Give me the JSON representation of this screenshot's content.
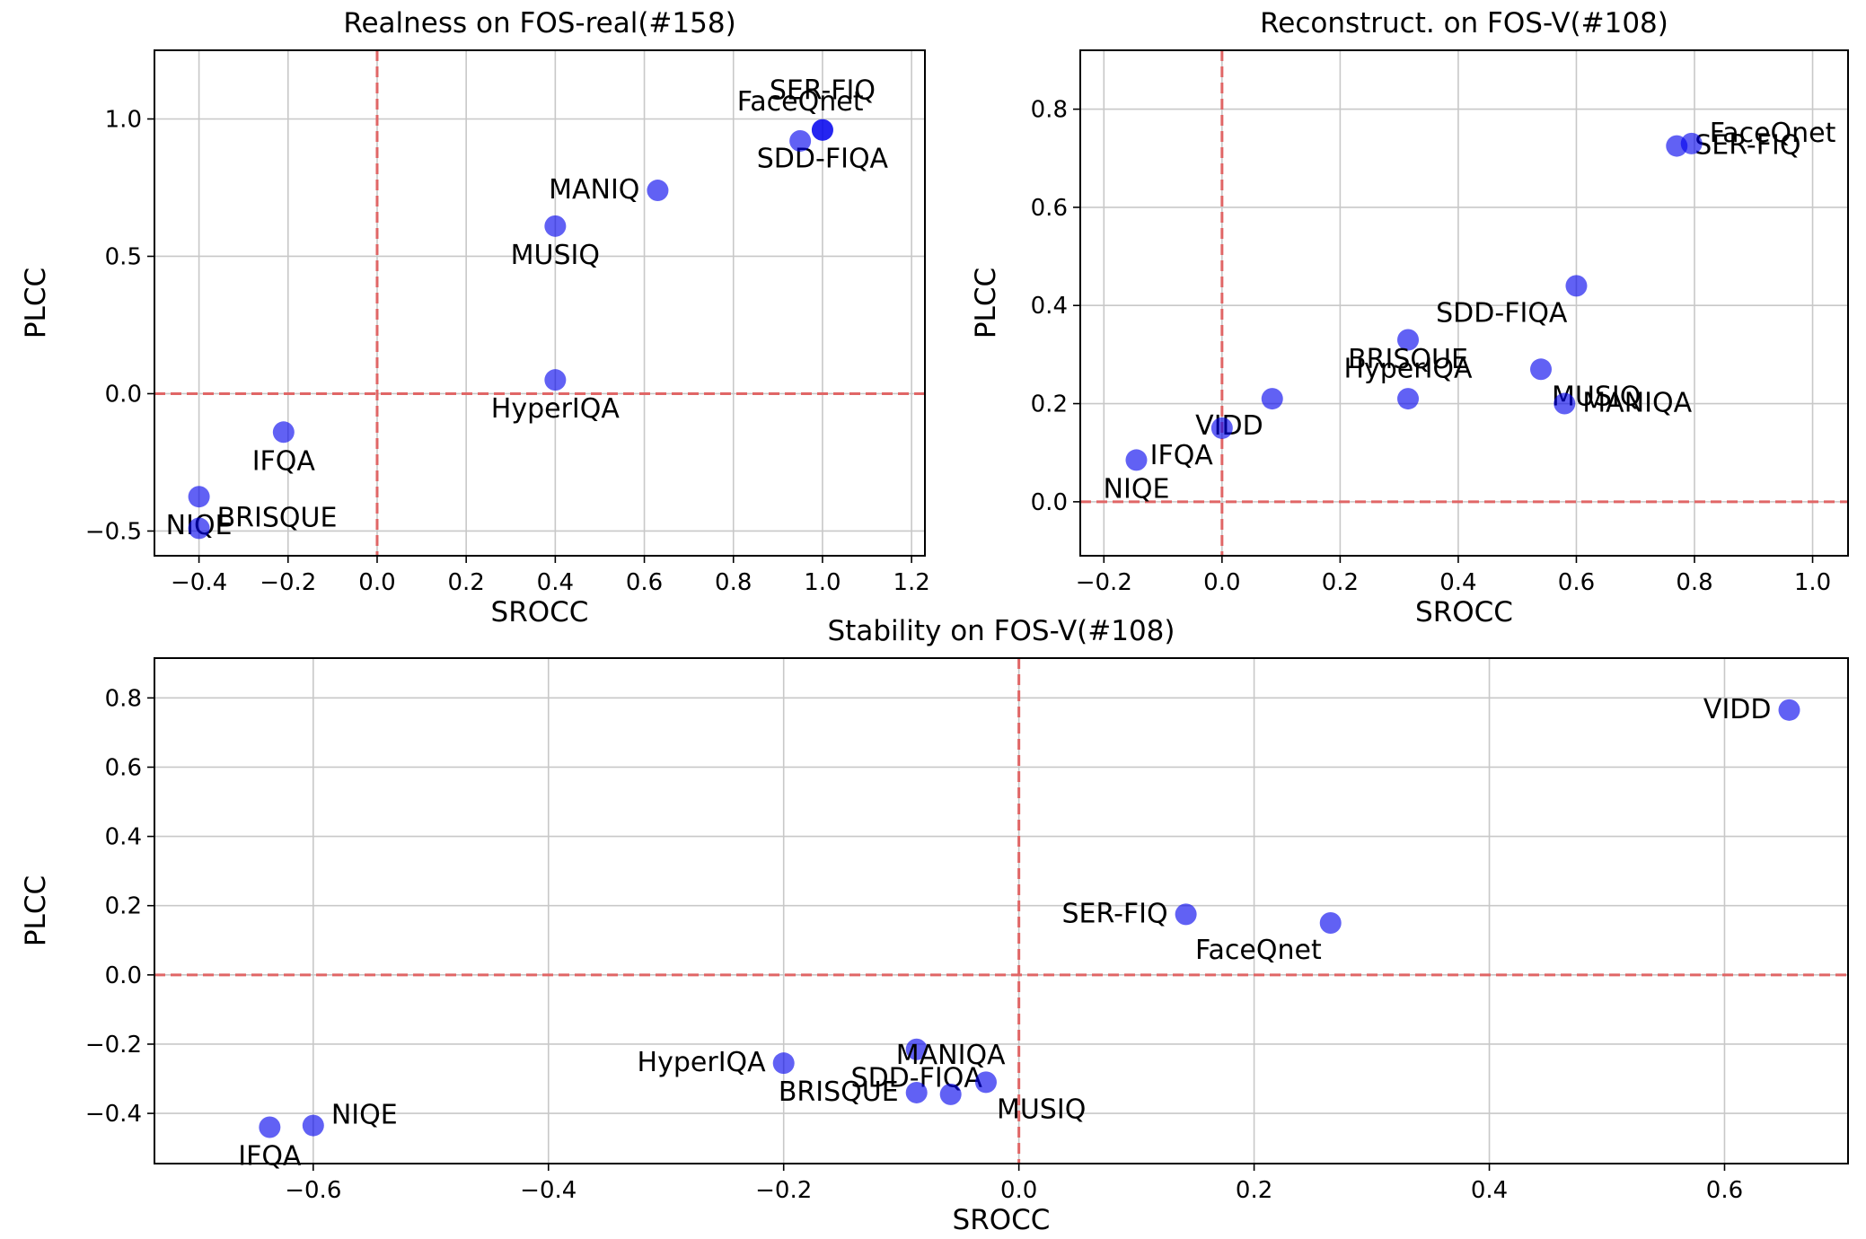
{
  "chart_data": [
    {
      "type": "scatter",
      "title": "Realness on FOS-real(#158)",
      "xlabel": "SROCC",
      "ylabel": "PLCC",
      "xlim": [
        -0.5,
        1.23
      ],
      "ylim": [
        -0.59,
        1.25
      ],
      "xticks": [
        -0.4,
        -0.2,
        0.0,
        0.2,
        0.4,
        0.6,
        0.8,
        1.0,
        1.2
      ],
      "xtick_labels": [
        "−0.4",
        "−0.2",
        "0.0",
        "0.2",
        "0.4",
        "0.6",
        "0.8",
        "1.0",
        "1.2"
      ],
      "yticks": [
        -0.5,
        0.0,
        0.5,
        1.0
      ],
      "ytick_labels": [
        "−0.5",
        "0.0",
        "0.5",
        "1.0"
      ],
      "grid": true,
      "reference_lines": {
        "x": 0,
        "y": 0
      },
      "points": [
        {
          "label": "SER-FIQ",
          "x": 1.0,
          "y": 0.96,
          "anchor": "bottom-center"
        },
        {
          "label": "SDD-FIQA",
          "x": 1.0,
          "y": 0.96,
          "anchor": "top-center"
        },
        {
          "label": "FaceQnet",
          "x": 0.95,
          "y": 0.92,
          "anchor": "bottom-center"
        },
        {
          "label": "MANIQ",
          "x": 0.63,
          "y": 0.74,
          "anchor": "left"
        },
        {
          "label": "MUSIQ",
          "x": 0.4,
          "y": 0.61,
          "anchor": "top-center"
        },
        {
          "label": "HyperIQA",
          "x": 0.4,
          "y": 0.05,
          "anchor": "top-center"
        },
        {
          "label": "IFQA",
          "x": -0.21,
          "y": -0.14,
          "anchor": "top-center"
        },
        {
          "label": "NIQE",
          "x": -0.4,
          "y": -0.375,
          "anchor": "top-center"
        },
        {
          "label": "BRISQUE",
          "x": -0.4,
          "y": -0.49,
          "anchor": "bottom-right"
        }
      ]
    },
    {
      "type": "scatter",
      "title": "Reconstruct. on FOS-V(#108)",
      "xlabel": "SROCC",
      "ylabel": "PLCC",
      "xlim": [
        -0.24,
        1.06
      ],
      "ylim": [
        -0.11,
        0.92
      ],
      "xticks": [
        -0.2,
        0.0,
        0.2,
        0.4,
        0.6,
        0.8,
        1.0
      ],
      "xtick_labels": [
        "−0.2",
        "0.0",
        "0.2",
        "0.4",
        "0.6",
        "0.8",
        "1.0"
      ],
      "yticks": [
        0.0,
        0.2,
        0.4,
        0.6,
        0.8
      ],
      "ytick_labels": [
        "0.0",
        "0.2",
        "0.4",
        "0.6",
        "0.8"
      ],
      "grid": true,
      "reference_lines": {
        "x": 0,
        "y": 0
      },
      "points": [
        {
          "label": "SER-FIQ",
          "x": 0.77,
          "y": 0.725,
          "anchor": "right"
        },
        {
          "label": "FaceQnet",
          "x": 0.795,
          "y": 0.73,
          "anchor": "bottom-right"
        },
        {
          "label": "SDD-FIQA",
          "x": 0.6,
          "y": 0.44,
          "anchor": "top-left"
        },
        {
          "label": "HyperIQA",
          "x": 0.315,
          "y": 0.33,
          "anchor": "top-center"
        },
        {
          "label": "MUSIQ",
          "x": 0.54,
          "y": 0.27,
          "anchor": "top-right"
        },
        {
          "label": "VIDD",
          "x": 0.085,
          "y": 0.21,
          "anchor": "top-left"
        },
        {
          "label": "BRISQUE",
          "x": 0.315,
          "y": 0.21,
          "anchor": "bottom-center"
        },
        {
          "label": "MANIQA",
          "x": 0.58,
          "y": 0.2,
          "anchor": "right"
        },
        {
          "label": "IFQA",
          "x": 0.0,
          "y": 0.15,
          "anchor": "top-left"
        },
        {
          "label": "NIQE",
          "x": -0.145,
          "y": 0.085,
          "anchor": "top-center"
        }
      ]
    },
    {
      "type": "scatter",
      "title": "Stability on FOS-V(#108)",
      "xlabel": "SROCC",
      "ylabel": "PLCC",
      "xlim": [
        -0.735,
        0.705
      ],
      "ylim": [
        -0.545,
        0.915
      ],
      "xticks": [
        -0.6,
        -0.4,
        -0.2,
        0.0,
        0.2,
        0.4,
        0.6
      ],
      "xtick_labels": [
        "−0.6",
        "−0.4",
        "−0.2",
        "0.0",
        "0.2",
        "0.4",
        "0.6"
      ],
      "yticks": [
        -0.4,
        -0.2,
        0.0,
        0.2,
        0.4,
        0.6,
        0.8
      ],
      "ytick_labels": [
        "−0.4",
        "−0.2",
        "0.0",
        "0.2",
        "0.4",
        "0.6",
        "0.8"
      ],
      "grid": true,
      "reference_lines": {
        "x": 0,
        "y": 0
      },
      "points": [
        {
          "label": "VIDD",
          "x": 0.655,
          "y": 0.765,
          "anchor": "left"
        },
        {
          "label": "SER-FIQ",
          "x": 0.142,
          "y": 0.175,
          "anchor": "left"
        },
        {
          "label": "FaceQnet",
          "x": 0.265,
          "y": 0.15,
          "anchor": "top-left"
        },
        {
          "label": "SDD-FIQA",
          "x": -0.087,
          "y": -0.215,
          "anchor": "top-center"
        },
        {
          "label": "HyperIQA",
          "x": -0.2,
          "y": -0.255,
          "anchor": "left"
        },
        {
          "label": "MUSIQ",
          "x": -0.028,
          "y": -0.31,
          "anchor": "top-right"
        },
        {
          "label": "BRISQUE",
          "x": -0.087,
          "y": -0.34,
          "anchor": "left"
        },
        {
          "label": "MANIQA",
          "x": -0.058,
          "y": -0.345,
          "anchor": "bottom-center"
        },
        {
          "label": "IFQA",
          "x": -0.637,
          "y": -0.44,
          "anchor": "top-center"
        },
        {
          "label": "NIQE",
          "x": -0.6,
          "y": -0.435,
          "anchor": "bottom-right"
        }
      ]
    }
  ],
  "colors": {
    "marker": "#0000ee",
    "marker_opacity": 0.62,
    "reference_line": "#e06666",
    "grid": "#c8c8c8",
    "axes": "#000000"
  }
}
